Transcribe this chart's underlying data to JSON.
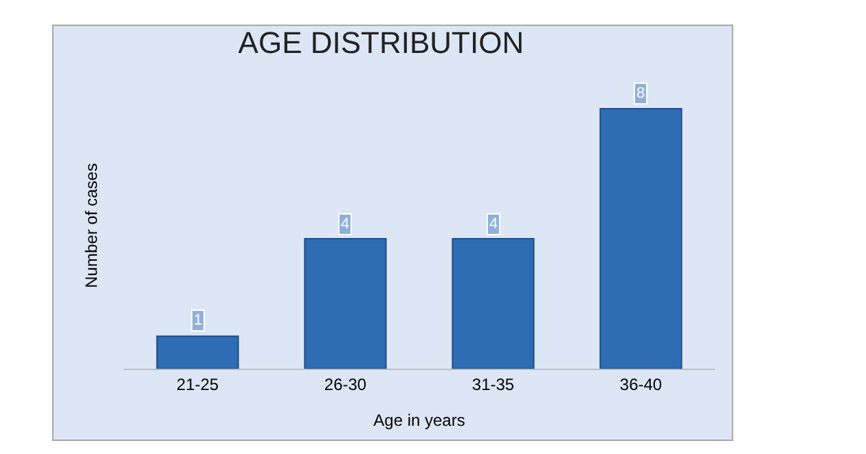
{
  "chart_data": {
    "type": "bar",
    "title": "AGE DISTRIBUTION",
    "xlabel": "Age in years",
    "ylabel": "Number of cases",
    "categories": [
      "21-25",
      "26-30",
      "31-35",
      "36-40"
    ],
    "values": [
      1,
      4,
      4,
      8
    ],
    "color": "#2e6db4",
    "data_labels": true
  }
}
